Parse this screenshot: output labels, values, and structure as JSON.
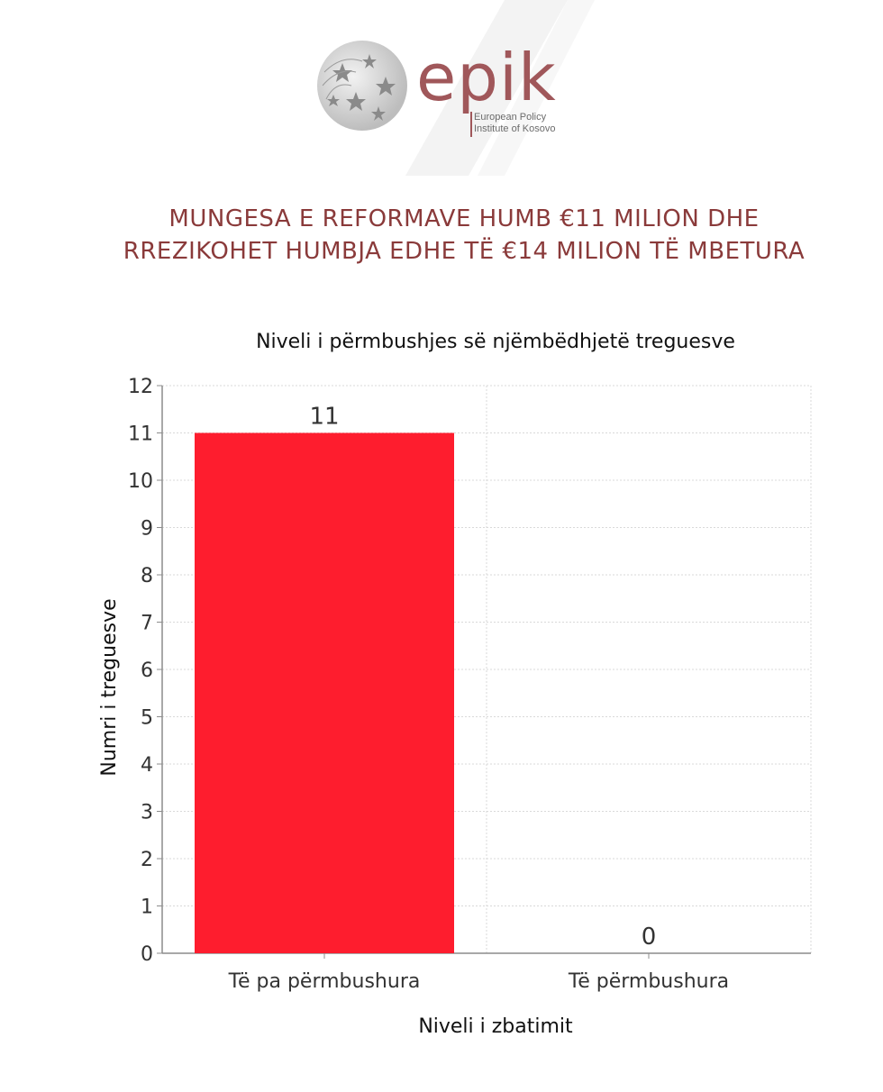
{
  "header": {
    "logo_word": "epik",
    "logo_sub_line1": "European Policy",
    "logo_sub_line2": "Institute of Kosovo",
    "headline_line1": "MUNGESA E REFORMAVE HUMB €11 MILION DHE",
    "headline_line2": "RREZIKOHET HUMBJA EDHE TË €14 MILION TË MBETURA"
  },
  "colors": {
    "brand": "#a0575a",
    "headline": "#8a3a3a",
    "bar": "#fe1d2e",
    "grid": "#d9d9d9",
    "axis": "#8c8c8c"
  },
  "chart_data": {
    "type": "bar",
    "title": "Niveli i përmbushjes së njëmbëdhjetë treguesve",
    "xlabel": "Niveli i zbatimit",
    "ylabel": "Numri i treguesve",
    "categories": [
      "Të pa përmbushura",
      "Të përmbushura"
    ],
    "values": [
      11,
      0
    ],
    "data_labels": [
      "11",
      "0"
    ],
    "ylim": [
      0,
      12
    ],
    "yticks": [
      "0",
      "1",
      "2",
      "3",
      "4",
      "5",
      "6",
      "7",
      "8",
      "9",
      "10",
      "11",
      "12"
    ],
    "grid": true,
    "legend": "none"
  }
}
